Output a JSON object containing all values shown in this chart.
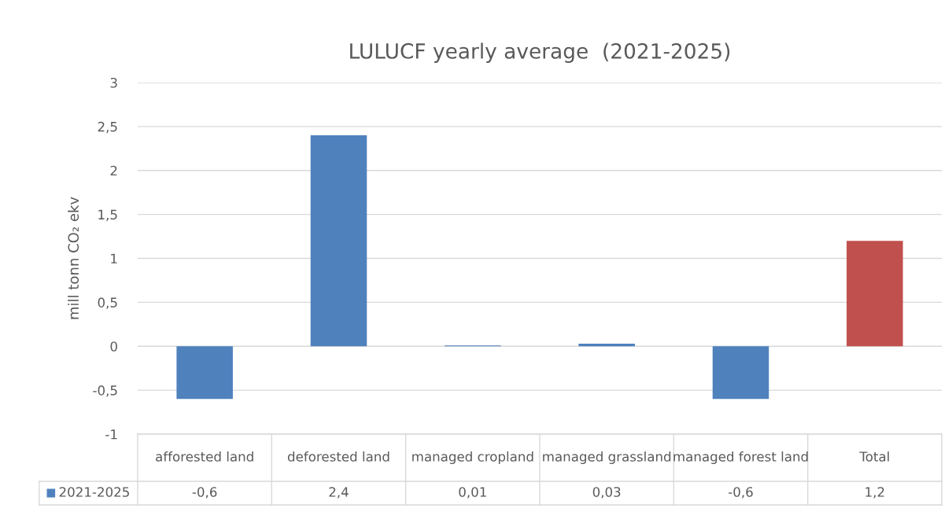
{
  "chart_data": {
    "type": "bar",
    "title": "LULUCF yearly average  (2021-2025)",
    "ylabel": "mill tonn CO₂ ekv",
    "categories": [
      "afforested land",
      "deforested land",
      "managed cropland",
      "managed grassland",
      "managed forest land",
      "Total"
    ],
    "series": [
      {
        "name": "2021-2025",
        "color": "#4f81bd",
        "colors": [
          "#4f81bd",
          "#4f81bd",
          "#4f81bd",
          "#4f81bd",
          "#4f81bd",
          "#c0504d"
        ],
        "values": [
          -0.6,
          2.4,
          0.01,
          0.03,
          -0.6,
          1.2
        ],
        "value_labels": [
          "-0,6",
          "2,4",
          "0,01",
          "0,03",
          "-0,6",
          "1,2"
        ]
      }
    ],
    "ylim": [
      -1,
      3
    ],
    "yticks": [
      -1,
      {
        "value": -0.5,
        "label": "-0,5"
      },
      0,
      {
        "value": 0.5,
        "label": "0,5"
      },
      1,
      {
        "value": 1.5,
        "label": "1,5"
      },
      2,
      {
        "value": 2.5,
        "label": "2,5"
      },
      3
    ],
    "grid": "y"
  }
}
